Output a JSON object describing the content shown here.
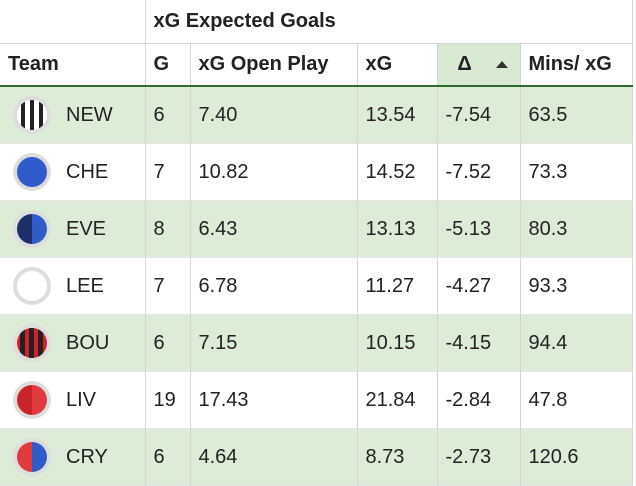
{
  "header": {
    "group": "xG Expected Goals",
    "columns": [
      "Team",
      "G",
      "xG Open Play",
      "xG",
      "Δ",
      "Mins/ xG"
    ]
  },
  "table": {
    "rows": [
      [
        "NEW",
        "6",
        "7.40",
        "13.54",
        "-7.54",
        "63.5"
      ],
      [
        "CHE",
        "7",
        "10.82",
        "14.52",
        "-7.52",
        "73.3"
      ],
      [
        "EVE",
        "8",
        "6.43",
        "13.13",
        "-5.13",
        "80.3"
      ],
      [
        "LEE",
        "7",
        "6.78",
        "11.27",
        "-4.27",
        "93.3"
      ],
      [
        "BOU",
        "6",
        "7.15",
        "10.15",
        "-4.15",
        "94.4"
      ],
      [
        "LIV",
        "19",
        "17.43",
        "21.84",
        "-2.84",
        "47.8"
      ],
      [
        "CRY",
        "6",
        "4.64",
        "8.73",
        "-2.73",
        "120.6"
      ]
    ]
  }
}
